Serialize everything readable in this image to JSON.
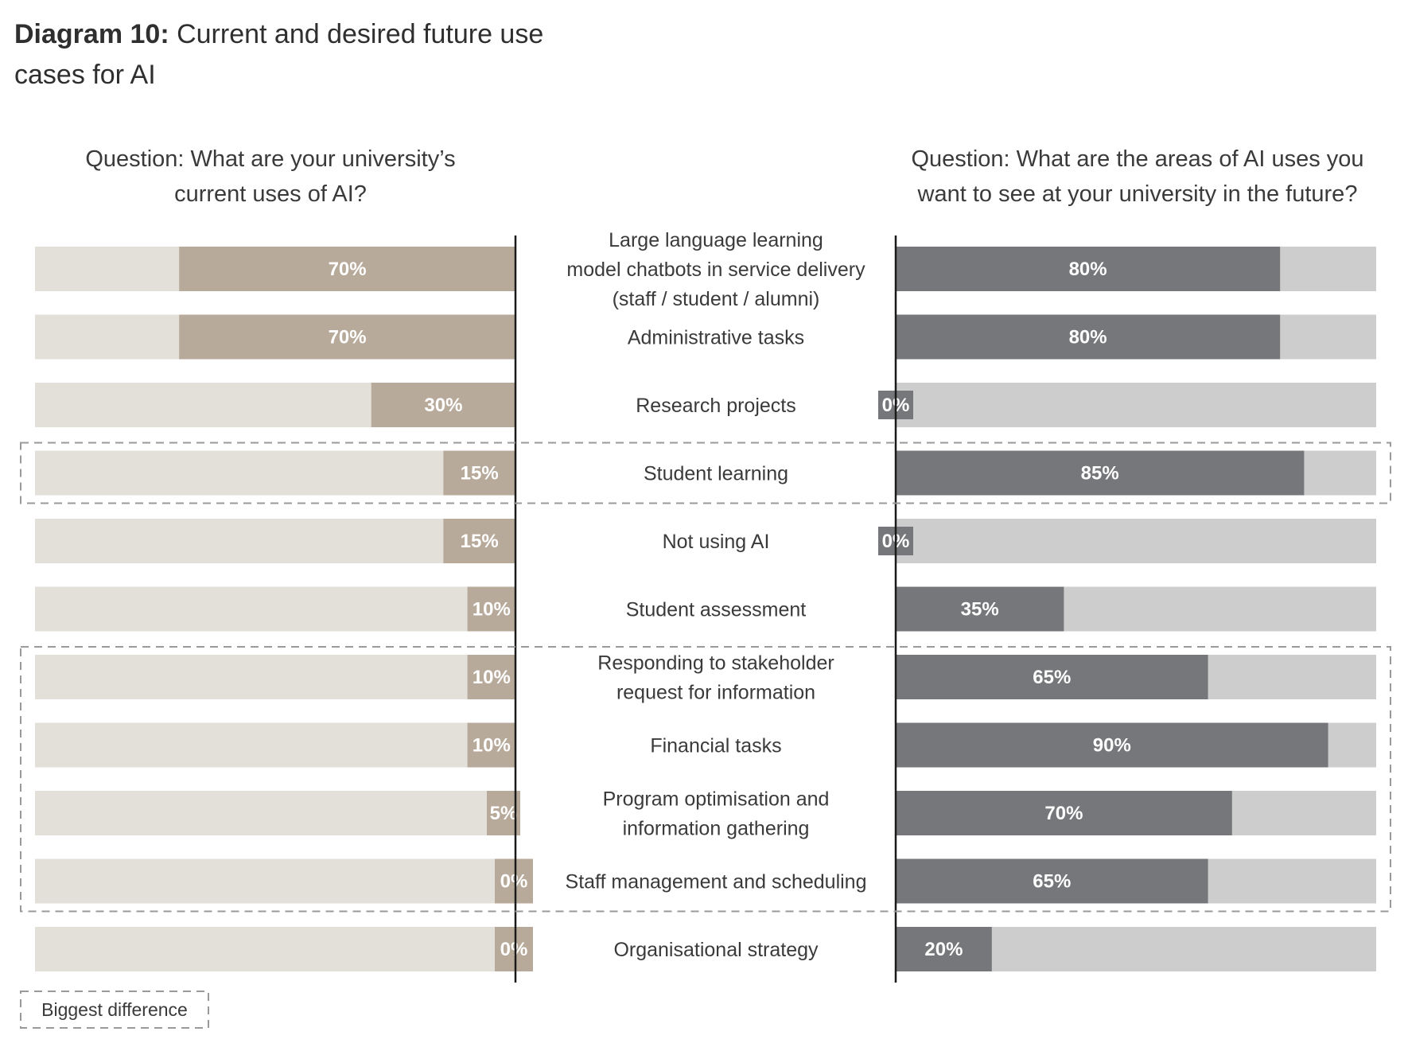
{
  "title": {
    "bold": "Diagram 10:",
    "rest": "Current and desired future use cases for AI"
  },
  "colors": {
    "left_bg": "#e3dfd9",
    "left_bar": "#b8aa9a",
    "right_bg": "#cdcdcd",
    "right_bar": "#76777a",
    "axis": "#1a1a1a",
    "dash": "#9a9a9a"
  },
  "chart_data": {
    "type": "bar",
    "orientation": "horizontal-butterfly",
    "title": "Current and desired future use cases for AI",
    "left_question": "Question: What are your university’s current uses of AI?",
    "right_question": "Question: What are the areas of AI uses you want to see at your university in the future?",
    "unit": "%",
    "xlim": [
      0,
      100
    ],
    "categories": [
      "Large language learning model chatbots in service delivery (staff / student / alumni)",
      "Administrative tasks",
      "Research projects",
      "Student learning",
      "Not using AI",
      "Student assessment",
      "Responding to stakeholder request for information",
      "Financial tasks",
      "Program optimisation and information gathering",
      "Staff management and scheduling",
      "Organisational strategy"
    ],
    "category_lines": [
      [
        "Large language learning",
        "model chatbots in service delivery",
        "(staff / student / alumni)"
      ],
      [
        "Administrative tasks"
      ],
      [
        "Research projects"
      ],
      [
        "Student learning"
      ],
      [
        "Not using AI"
      ],
      [
        "Student assessment"
      ],
      [
        "Responding to stakeholder",
        "request for information"
      ],
      [
        "Financial tasks"
      ],
      [
        "Program optimisation and",
        "information gathering"
      ],
      [
        "Staff management and scheduling"
      ],
      [
        "Organisational strategy"
      ]
    ],
    "series": [
      {
        "name": "Current uses",
        "side": "left",
        "values": [
          70,
          70,
          30,
          15,
          15,
          10,
          10,
          10,
          5,
          0,
          0
        ],
        "labels": [
          "70%",
          "70%",
          "30%",
          "15%",
          "15%",
          "10%",
          "10%",
          "10%",
          "5%",
          "0%",
          "0%"
        ]
      },
      {
        "name": "Desired future uses",
        "side": "right",
        "values": [
          80,
          80,
          0,
          85,
          0,
          35,
          65,
          90,
          70,
          65,
          20
        ],
        "labels": [
          "80%",
          "80%",
          "0%",
          "85%",
          "0%",
          "35%",
          "65%",
          "90%",
          "70%",
          "65%",
          "20%"
        ]
      }
    ],
    "highlight_groups": [
      {
        "rows": [
          3,
          3
        ]
      },
      {
        "rows": [
          6,
          9
        ]
      }
    ],
    "legend": {
      "label": "Biggest difference",
      "position": "bottom-left"
    }
  }
}
